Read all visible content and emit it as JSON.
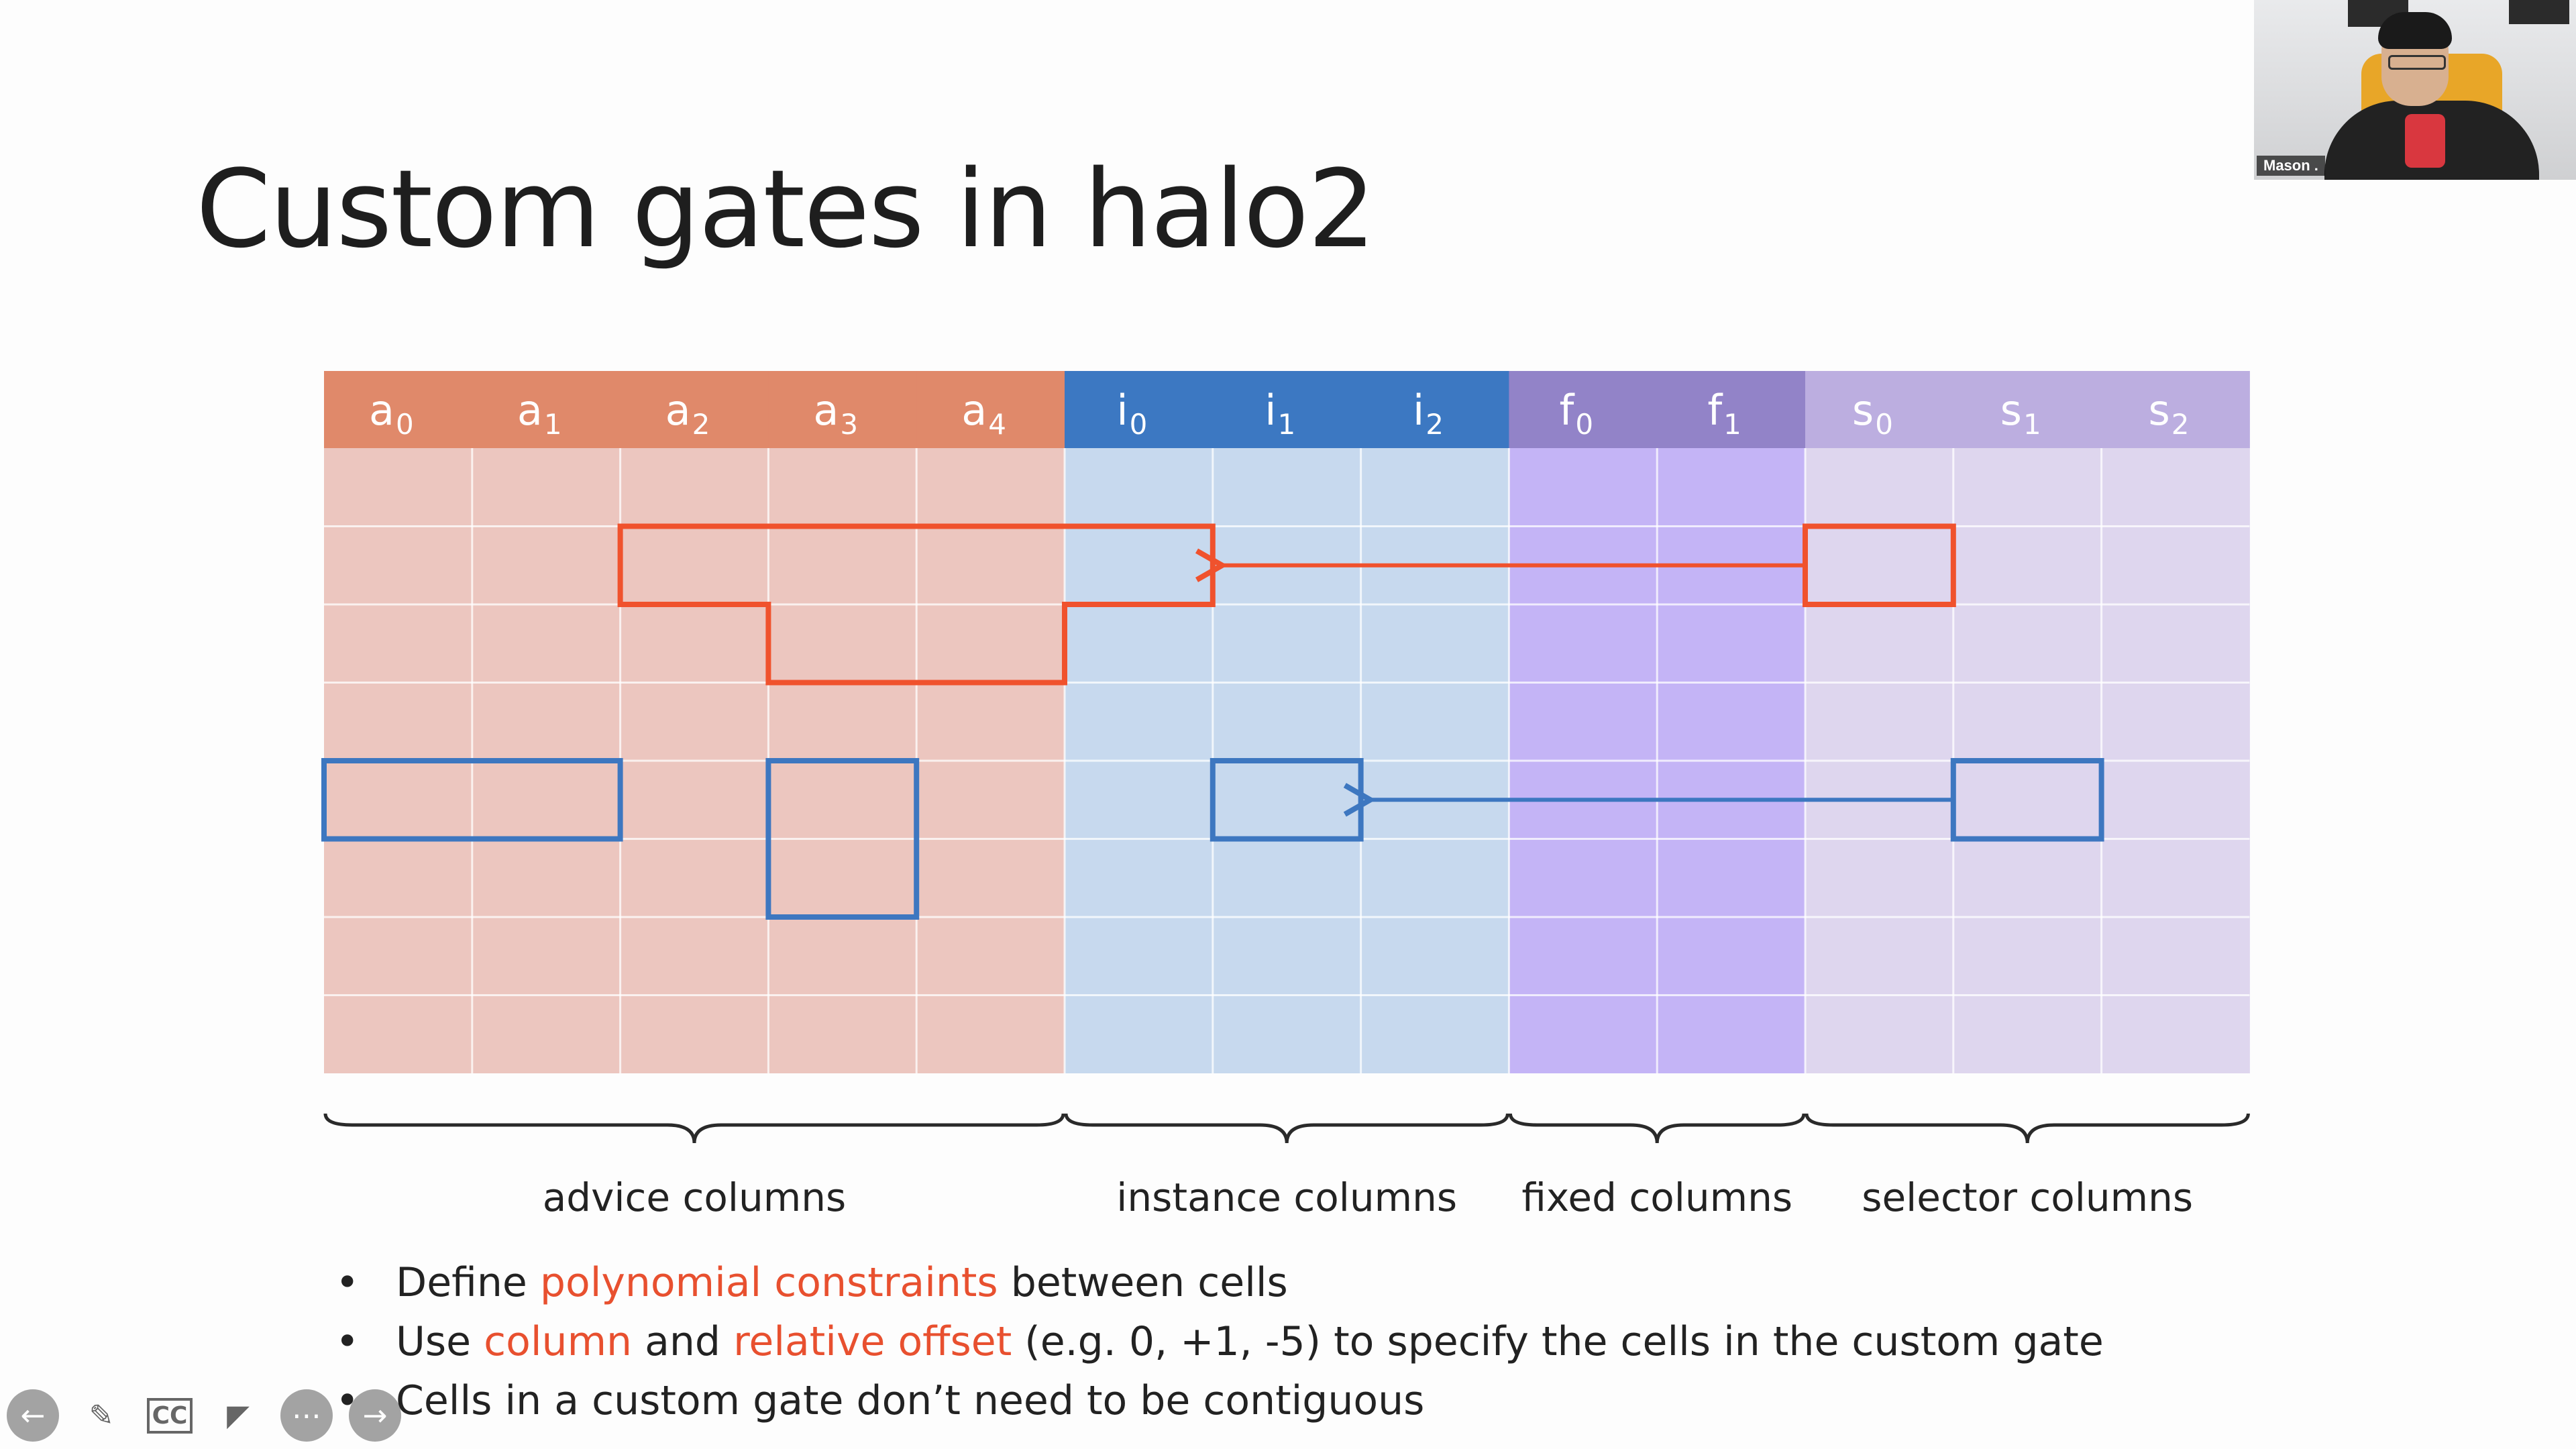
{
  "slide": {
    "title": "Custom gates in halo2",
    "columns": [
      {
        "base": "a",
        "sub": "0",
        "group": "advice"
      },
      {
        "base": "a",
        "sub": "1",
        "group": "advice"
      },
      {
        "base": "a",
        "sub": "2",
        "group": "advice"
      },
      {
        "base": "a",
        "sub": "3",
        "group": "advice"
      },
      {
        "base": "a",
        "sub": "4",
        "group": "advice"
      },
      {
        "base": "i",
        "sub": "0",
        "group": "instance"
      },
      {
        "base": "i",
        "sub": "1",
        "group": "instance"
      },
      {
        "base": "i",
        "sub": "2",
        "group": "instance"
      },
      {
        "base": "f",
        "sub": "0",
        "group": "fixed"
      },
      {
        "base": "f",
        "sub": "1",
        "group": "fixed"
      },
      {
        "base": "s",
        "sub": "0",
        "group": "selector"
      },
      {
        "base": "s",
        "sub": "1",
        "group": "selector"
      },
      {
        "base": "s",
        "sub": "2",
        "group": "selector"
      }
    ],
    "groups": {
      "advice": {
        "label": "advice columns",
        "header": "#e0896a",
        "body": "#ecc6bf"
      },
      "instance": {
        "label": "instance columns",
        "header": "#3c78c2",
        "body": "#c7d9ee"
      },
      "fixed": {
        "label": "fixed columns",
        "header": "#9283c8",
        "body": "#c4b4f6"
      },
      "selector": {
        "label": "selector columns",
        "header": "#bcaee0",
        "body": "#ded6ee"
      }
    },
    "gate_colors": {
      "red": "#f0522d",
      "blue": "#3d77c0"
    },
    "bullets": [
      [
        {
          "t": "Define "
        },
        {
          "t": "polynomial constraints",
          "hl": true
        },
        {
          "t": " between cells"
        }
      ],
      [
        {
          "t": "Use "
        },
        {
          "t": "column",
          "hl": true
        },
        {
          "t": " and "
        },
        {
          "t": "relative offset",
          "hl": true
        },
        {
          "t": " (e.g. 0, +1, -5) to specify the cells in the custom gate"
        }
      ],
      [
        {
          "t": "Cells in a custom gate don’t need to be contiguous"
        }
      ]
    ],
    "bullet_symbol": "•"
  },
  "webcam": {
    "name": "Mason ."
  },
  "toolbar": [
    {
      "name": "previous-slide-button",
      "icon": "arrow-left-icon",
      "glyph": "←"
    },
    {
      "name": "pen-button",
      "icon": "pencil-icon",
      "glyph": "✎"
    },
    {
      "name": "captions-button",
      "icon": "cc-icon",
      "glyph": "CC"
    },
    {
      "name": "camera-button",
      "icon": "camera-off-icon",
      "glyph": "◤"
    },
    {
      "name": "more-button",
      "icon": "ellipsis-icon",
      "glyph": "⋯"
    },
    {
      "name": "next-slide-button",
      "icon": "arrow-right-icon",
      "glyph": "→"
    }
  ]
}
